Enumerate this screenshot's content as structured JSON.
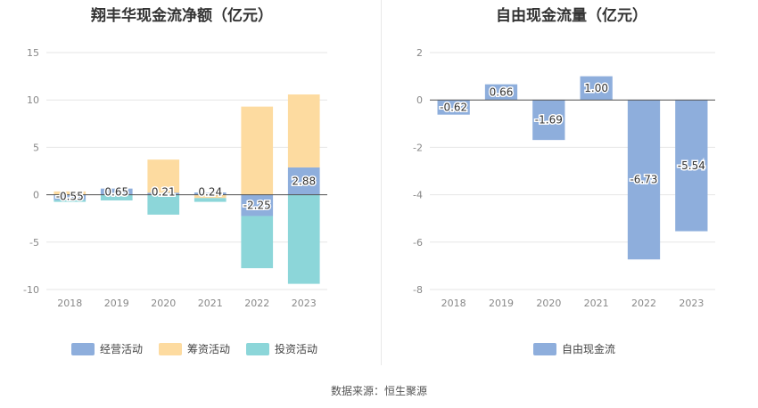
{
  "footer": {
    "source": "数据来源：恒生聚源"
  },
  "chart_data": [
    {
      "type": "bar",
      "title": "翔丰华现金流净额（亿元）",
      "categories": [
        "2018",
        "2019",
        "2020",
        "2021",
        "2022",
        "2023"
      ],
      "ylim": [
        -10,
        15
      ],
      "yticks": [
        15,
        10,
        5,
        0,
        -5,
        -10
      ],
      "stacked": true,
      "series": [
        {
          "name": "经营活动",
          "color": "#8eaedc",
          "values": [
            -0.55,
            0.65,
            0.21,
            0.24,
            -2.25,
            2.88
          ],
          "labels": [
            "-0.55",
            "0.65",
            "0.21",
            "0.24",
            "-2.25",
            "2.88"
          ]
        },
        {
          "name": "筹资活动",
          "color": "#fddba0",
          "values": [
            0.35,
            0.0,
            3.5,
            -0.35,
            9.3,
            7.7
          ]
        },
        {
          "name": "投资活动",
          "color": "#8cd6d9",
          "values": [
            -0.2,
            -0.6,
            -2.1,
            -0.4,
            -5.5,
            -9.4
          ]
        }
      ],
      "grid": true,
      "legend": "bottom"
    },
    {
      "type": "bar",
      "title": "自由现金流量（亿元）",
      "categories": [
        "2018",
        "2019",
        "2020",
        "2021",
        "2022",
        "2023"
      ],
      "ylim": [
        -8,
        2
      ],
      "yticks": [
        2,
        0,
        -2,
        -4,
        -6,
        -8
      ],
      "series": [
        {
          "name": "自由现金流",
          "color": "#8eaedc",
          "values": [
            -0.62,
            0.66,
            -1.69,
            1.0,
            -6.73,
            -5.54
          ],
          "labels": [
            "-0.62",
            "0.66",
            "-1.69",
            "1.00",
            "-6.73",
            "-5.54"
          ]
        }
      ],
      "grid": true,
      "legend": "bottom"
    }
  ]
}
